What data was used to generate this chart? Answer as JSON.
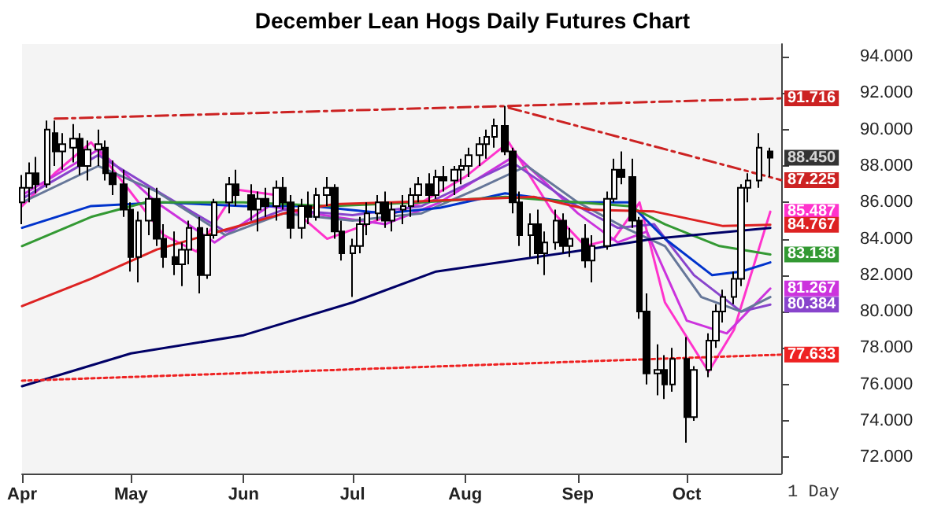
{
  "chart_data": {
    "type": "candlestick",
    "title": "December Lean Hogs Daily Futures Chart",
    "color": "#000000",
    "marker": "none",
    "x": [
      "--04-01",
      "--04-03",
      "--04-05",
      "--04-08",
      "--04-10",
      "--04-12",
      "--04-15",
      "--04-17",
      "--04-19",
      "--04-22",
      "--04-24",
      "--04-26",
      "--04-29",
      "--05-01",
      "--05-03",
      "--05-06",
      "--05-08",
      "--05-10",
      "--05-13",
      "--05-15",
      "--05-17",
      "--05-20",
      "--05-22",
      "--05-24",
      "--05-28",
      "--05-30",
      "--06-03",
      "--06-05",
      "--06-07",
      "--06-10",
      "--06-12",
      "--06-14",
      "--06-17",
      "--06-19",
      "--06-21",
      "--06-24",
      "--06-26",
      "--06-28",
      "--07-01",
      "--07-03",
      "--07-05",
      "--07-08",
      "--07-10",
      "--07-12",
      "--07-15",
      "--07-17",
      "--07-19",
      "--07-22",
      "--07-24",
      "--07-26",
      "--07-29",
      "--07-31",
      "--08-02",
      "--08-05",
      "--08-07",
      "--08-09",
      "--08-12",
      "--08-14",
      "--08-16",
      "--08-19",
      "--08-21",
      "--08-23",
      "--08-26",
      "--08-28",
      "--08-30",
      "--09-03",
      "--09-05",
      "--09-09",
      "--09-11",
      "--09-13",
      "--09-16",
      "--09-18",
      "--09-20",
      "--09-23",
      "--09-25",
      "--09-27",
      "--10-01",
      "--10-03",
      "--10-07",
      "--10-09",
      "--10-11",
      "--10-14",
      "--10-16",
      "--10-18",
      "--10-21",
      "--10-24"
    ],
    "ohlc": [
      [
        86.0,
        87.5,
        84.8,
        86.8
      ],
      [
        86.8,
        88.2,
        86.0,
        87.6
      ],
      [
        87.6,
        88.5,
        86.5,
        87.0
      ],
      [
        87.0,
        90.5,
        86.8,
        90.0
      ],
      [
        89.8,
        90.5,
        88.0,
        88.8
      ],
      [
        88.8,
        89.8,
        87.8,
        89.2
      ],
      [
        89.0,
        90.3,
        88.2,
        89.5
      ],
      [
        89.5,
        89.8,
        87.5,
        88.0
      ],
      [
        88.0,
        89.4,
        87.2,
        88.9
      ],
      [
        88.9,
        90.0,
        88.0,
        89.2
      ],
      [
        89.0,
        89.4,
        87.2,
        87.6
      ],
      [
        87.6,
        88.3,
        86.4,
        87.0
      ],
      [
        87.0,
        87.8,
        85.2,
        85.6
      ],
      [
        85.6,
        86.0,
        82.2,
        83.0
      ],
      [
        83.0,
        85.5,
        81.6,
        85.0
      ],
      [
        85.0,
        86.8,
        84.2,
        86.2
      ],
      [
        86.2,
        86.8,
        83.6,
        84.0
      ],
      [
        84.0,
        84.8,
        82.4,
        83.0
      ],
      [
        83.0,
        84.4,
        82.0,
        82.6
      ],
      [
        82.6,
        83.8,
        81.4,
        83.4
      ],
      [
        83.4,
        85.0,
        82.6,
        84.6
      ],
      [
        84.6,
        85.2,
        81.0,
        82.0
      ],
      [
        82.0,
        84.6,
        81.8,
        84.2
      ],
      [
        84.2,
        86.2,
        84.0,
        86.0
      ],
      [
        86.0,
        87.4,
        85.4,
        87.0
      ],
      [
        87.0,
        87.8,
        85.8,
        86.4
      ],
      [
        86.4,
        87.0,
        85.0,
        85.6
      ],
      [
        85.6,
        86.6,
        84.4,
        86.2
      ],
      [
        86.2,
        86.8,
        85.2,
        85.8
      ],
      [
        85.8,
        87.2,
        85.0,
        86.8
      ],
      [
        86.8,
        87.4,
        85.6,
        86.0
      ],
      [
        86.0,
        86.4,
        84.0,
        84.6
      ],
      [
        84.6,
        86.2,
        84.0,
        85.8
      ],
      [
        85.8,
        86.6,
        84.8,
        85.2
      ],
      [
        85.2,
        86.8,
        85.0,
        86.4
      ],
      [
        86.4,
        87.4,
        85.8,
        86.8
      ],
      [
        86.8,
        87.0,
        84.0,
        84.4
      ],
      [
        84.4,
        85.0,
        82.8,
        83.2
      ],
      [
        83.2,
        84.0,
        80.8,
        83.6
      ],
      [
        83.6,
        85.2,
        83.2,
        84.8
      ],
      [
        84.8,
        86.0,
        84.2,
        85.4
      ],
      [
        85.4,
        86.4,
        85.0,
        86.0
      ],
      [
        86.0,
        86.6,
        84.6,
        85.0
      ],
      [
        85.0,
        86.0,
        84.4,
        85.6
      ],
      [
        85.6,
        86.4,
        84.8,
        85.8
      ],
      [
        85.8,
        86.8,
        85.2,
        86.4
      ],
      [
        86.4,
        87.4,
        86.0,
        87.0
      ],
      [
        87.0,
        87.6,
        86.0,
        86.4
      ],
      [
        86.4,
        87.8,
        86.2,
        87.4
      ],
      [
        87.4,
        88.0,
        86.6,
        87.2
      ],
      [
        87.2,
        88.0,
        86.4,
        87.8
      ],
      [
        87.8,
        88.4,
        87.0,
        88.0
      ],
      [
        88.0,
        89.0,
        87.4,
        88.6
      ],
      [
        88.6,
        89.6,
        88.0,
        89.2
      ],
      [
        89.2,
        90.0,
        88.4,
        89.6
      ],
      [
        89.6,
        90.6,
        89.0,
        90.2
      ],
      [
        90.2,
        91.3,
        88.6,
        88.8
      ],
      [
        88.8,
        89.0,
        85.4,
        86.0
      ],
      [
        86.0,
        86.6,
        83.6,
        84.2
      ],
      [
        84.2,
        85.4,
        83.0,
        84.8
      ],
      [
        84.8,
        85.6,
        82.6,
        83.2
      ],
      [
        83.2,
        84.4,
        82.0,
        83.8
      ],
      [
        83.8,
        85.6,
        83.4,
        85.0
      ],
      [
        85.0,
        85.4,
        83.2,
        83.6
      ],
      [
        83.6,
        84.6,
        83.0,
        84.0
      ],
      [
        84.0,
        84.8,
        82.4,
        82.8
      ],
      [
        82.8,
        84.2,
        81.6,
        83.6
      ],
      [
        83.6,
        86.6,
        83.4,
        86.2
      ],
      [
        86.2,
        88.4,
        86.0,
        87.8
      ],
      [
        87.8,
        88.8,
        87.0,
        87.4
      ],
      [
        87.4,
        88.4,
        84.6,
        85.0
      ],
      [
        85.0,
        85.2,
        79.6,
        80.0
      ],
      [
        80.0,
        81.0,
        76.0,
        76.6
      ],
      [
        76.6,
        78.2,
        75.4,
        76.8
      ],
      [
        76.8,
        77.6,
        75.2,
        76.0
      ],
      [
        76.0,
        78.0,
        75.6,
        77.4
      ],
      [
        77.4,
        78.6,
        72.8,
        74.2
      ],
      [
        74.2,
        77.0,
        74.0,
        76.8
      ],
      [
        76.8,
        78.8,
        76.4,
        78.4
      ],
      [
        78.4,
        80.4,
        78.0,
        80.0
      ],
      [
        80.0,
        81.2,
        79.4,
        80.8
      ],
      [
        80.8,
        82.2,
        80.4,
        81.8
      ],
      [
        81.8,
        87.0,
        81.4,
        86.8
      ],
      [
        86.8,
        87.6,
        86.0,
        87.2
      ],
      [
        87.2,
        89.8,
        86.8,
        89.0
      ],
      [
        88.8,
        89.0,
        87.4,
        88.45
      ]
    ],
    "series": [
      {
        "type": "line",
        "color": "#ff33cc",
        "x": [
          "--04-01",
          "--04-10",
          "--04-20",
          "--04-30",
          "--05-10",
          "--05-19",
          "--05-30",
          "--06-10",
          "--06-24",
          "--07-05",
          "--07-20",
          "--08-01",
          "--08-13",
          "--08-25",
          "--09-03",
          "--09-11",
          "--09-18",
          "--09-25",
          "--10-07",
          "--10-14",
          "--10-24"
        ],
        "values": [
          85.8,
          87.6,
          89.3,
          86.8,
          84.2,
          83.3,
          86.7,
          86.4,
          84.0,
          84.8,
          86.0,
          87.4,
          89.3,
          85.5,
          83.6,
          84.0,
          86.0,
          80.5,
          76.7,
          79.0,
          85.487
        ],
        "value_labels": [
          null,
          null,
          null,
          null,
          null,
          null,
          null,
          null,
          null,
          null,
          null,
          null,
          null,
          null,
          null,
          null,
          null,
          null,
          null,
          null,
          "85.487"
        ]
      },
      {
        "type": "line",
        "color": "#cc33dd",
        "x": [
          "--04-01",
          "--04-22",
          "--05-08",
          "--05-24",
          "--06-08",
          "--06-26",
          "--07-10",
          "--07-25",
          "--08-15",
          "--09-01",
          "--09-12",
          "--09-20",
          "--10-01",
          "--10-12",
          "--10-24"
        ],
        "values": [
          86.4,
          88.9,
          86.0,
          83.8,
          85.8,
          85.2,
          84.8,
          86.0,
          88.6,
          85.4,
          83.8,
          84.4,
          79.5,
          78.8,
          81.267
        ],
        "value_labels": [
          null,
          null,
          null,
          null,
          null,
          null,
          null,
          null,
          null,
          null,
          null,
          null,
          null,
          null,
          "81.267"
        ]
      },
      {
        "type": "line",
        "color": "#8844cc",
        "x": [
          "--04-01",
          "--04-22",
          "--05-10",
          "--05-27",
          "--06-12",
          "--07-01",
          "--07-20",
          "--08-14",
          "--08-30",
          "--09-12",
          "--09-22",
          "--10-03",
          "--10-16",
          "--10-24"
        ],
        "values": [
          86.2,
          88.6,
          86.4,
          84.4,
          85.6,
          85.3,
          85.8,
          88.2,
          86.0,
          84.6,
          84.8,
          82.0,
          80.0,
          80.384
        ],
        "value_labels": [
          null,
          null,
          null,
          null,
          null,
          null,
          null,
          null,
          null,
          null,
          null,
          null,
          null,
          "80.384"
        ]
      },
      {
        "type": "line",
        "color": "#667799",
        "x": [
          "--04-01",
          "--04-22",
          "--05-08",
          "--05-27",
          "--06-12",
          "--07-01",
          "--07-20",
          "--08-05",
          "--08-18",
          "--09-01",
          "--09-15",
          "--09-25",
          "--10-05",
          "--10-16",
          "--10-24"
        ],
        "values": [
          86.0,
          88.0,
          86.6,
          84.2,
          85.4,
          85.0,
          85.4,
          86.8,
          88.0,
          86.0,
          84.5,
          83.6,
          80.8,
          80.0,
          80.8
        ]
      },
      {
        "type": "line",
        "color": "#0033cc",
        "x": [
          "--04-01",
          "--04-20",
          "--05-10",
          "--06-01",
          "--06-20",
          "--07-10",
          "--07-25",
          "--08-12",
          "--08-30",
          "--09-15",
          "--09-25",
          "--10-08",
          "--10-16",
          "--10-24"
        ],
        "values": [
          84.6,
          85.8,
          86.0,
          85.8,
          85.8,
          85.4,
          85.7,
          86.5,
          86.0,
          86.0,
          84.0,
          82.0,
          82.2,
          82.7
        ]
      },
      {
        "type": "line",
        "color": "#339933",
        "x": [
          "--04-01",
          "--04-20",
          "--05-05",
          "--06-01",
          "--06-25",
          "--07-20",
          "--08-12",
          "--09-01",
          "--09-15",
          "--09-25",
          "--10-10",
          "--10-24"
        ],
        "values": [
          83.6,
          85.2,
          86.0,
          86.0,
          85.8,
          86.0,
          86.3,
          86.0,
          85.8,
          84.8,
          83.6,
          83.138
        ],
        "value_labels": [
          null,
          null,
          null,
          null,
          null,
          null,
          null,
          null,
          null,
          null,
          null,
          "83.138"
        ]
      },
      {
        "type": "line",
        "color": "#dd2222",
        "x": [
          "--04-01",
          "--04-20",
          "--05-08",
          "--05-27",
          "--06-14",
          "--06-26",
          "--07-12",
          "--07-24",
          "--08-20",
          "--09-04",
          "--09-22",
          "--10-11",
          "--10-24"
        ],
        "values": [
          80.3,
          81.8,
          83.4,
          84.5,
          85.5,
          85.9,
          86.0,
          86.1,
          86.3,
          85.6,
          85.5,
          84.7,
          84.767
        ],
        "value_labels": [
          null,
          null,
          null,
          null,
          null,
          null,
          null,
          null,
          null,
          null,
          null,
          null,
          "84.767"
        ]
      },
      {
        "type": "line",
        "color": "#000066",
        "x": [
          "--04-01",
          "--05-01",
          "--06-01",
          "--07-01",
          "--07-24",
          "--08-31",
          "--09-22",
          "--10-24"
        ],
        "values": [
          75.9,
          77.7,
          78.7,
          80.5,
          82.2,
          83.3,
          84.0,
          84.6
        ]
      },
      {
        "type": "line",
        "color": "#cc2222",
        "line_style": "dashed",
        "x": [
          "--04-10",
          "--10-27"
        ],
        "values": [
          90.6,
          91.716
        ],
        "value_labels": [
          null,
          "91.716"
        ]
      },
      {
        "type": "line",
        "color": "#cc2222",
        "line_style": "dashed",
        "x": [
          "--08-13",
          "--10-27"
        ],
        "values": [
          91.2,
          87.225
        ],
        "value_labels": [
          null,
          "87.225"
        ]
      },
      {
        "type": "line",
        "color": "#ee2222",
        "line_style": "dotted",
        "x": [
          "--04-01",
          "--10-27"
        ],
        "values": [
          76.2,
          77.633
        ],
        "value_labels": [
          null,
          "77.633"
        ]
      }
    ],
    "xlim": [
      "--04-01",
      "--10-27"
    ],
    "xticks": [
      {
        "value": "--04-01",
        "label": "Apr"
      },
      {
        "value": "--05-01",
        "label": "May"
      },
      {
        "value": "--06-01",
        "label": "Jun"
      },
      {
        "value": "--07-01",
        "label": "Jul"
      },
      {
        "value": "--08-01",
        "label": "Aug"
      },
      {
        "value": "--09-01",
        "label": "Sep"
      },
      {
        "value": "--10-01",
        "label": "Oct"
      }
    ],
    "ylim": [
      71.1,
      94.7
    ],
    "yticks": [
      {
        "value": 72,
        "label": "72.000"
      },
      {
        "value": 74,
        "label": "74.000"
      },
      {
        "value": 76,
        "label": "76.000"
      },
      {
        "value": 78,
        "label": "78.000"
      },
      {
        "value": 80,
        "label": "80.000"
      },
      {
        "value": 82,
        "label": "82.000"
      },
      {
        "value": 84,
        "label": "84.000"
      },
      {
        "value": 86,
        "label": "86.000"
      },
      {
        "value": 88,
        "label": "88.000"
      },
      {
        "value": 90,
        "label": "90.000"
      },
      {
        "value": 92,
        "label": "92.000"
      },
      {
        "value": 94,
        "label": "94.000"
      }
    ],
    "annotations": [
      {
        "text": "88.450",
        "x": "--10-24",
        "y": 88.45
      },
      "1 Day"
    ]
  }
}
